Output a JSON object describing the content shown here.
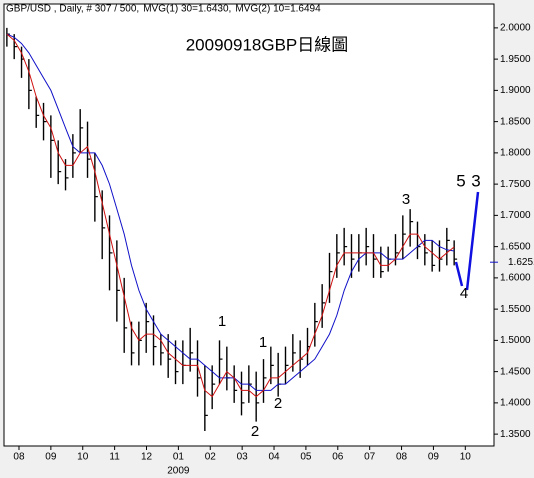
{
  "chart_data": {
    "type": "ohlc",
    "header": "GBP/USD , Daily, # 307 / 500,",
    "title": "20090918GBP日線圖",
    "x": [
      -0.38,
      -0.15,
      0.08,
      0.31,
      0.54,
      0.77,
      1.0,
      1.23,
      1.46,
      1.69,
      1.92,
      2.15,
      2.38,
      2.61,
      2.84,
      3.07,
      3.3,
      3.53,
      3.76,
      3.99,
      4.22,
      4.45,
      4.68,
      4.91,
      5.14,
      5.37,
      5.6,
      5.83,
      6.06,
      6.29,
      6.52,
      6.75,
      6.98,
      7.21,
      7.44,
      7.67,
      7.9,
      8.13,
      8.36,
      8.59,
      8.82,
      9.05,
      9.28,
      9.51,
      9.74,
      9.97,
      10.2,
      10.43,
      10.66,
      10.89,
      11.12,
      11.35,
      11.58,
      11.81,
      12.04,
      12.27,
      12.5,
      12.73,
      12.96,
      13.19,
      13.42,
      13.65
    ],
    "high": [
      2.0,
      1.99,
      1.97,
      1.95,
      1.89,
      1.88,
      1.86,
      1.82,
      1.79,
      1.83,
      1.87,
      1.85,
      1.8,
      1.74,
      1.7,
      1.66,
      1.6,
      1.53,
      1.53,
      1.56,
      1.54,
      1.51,
      1.51,
      1.5,
      1.5,
      1.52,
      1.5,
      1.46,
      1.46,
      1.5,
      1.49,
      1.46,
      1.45,
      1.46,
      1.45,
      1.47,
      1.49,
      1.48,
      1.49,
      1.51,
      1.5,
      1.52,
      1.56,
      1.59,
      1.64,
      1.67,
      1.68,
      1.67,
      1.67,
      1.68,
      1.67,
      1.65,
      1.65,
      1.67,
      1.7,
      1.71,
      1.69,
      1.67,
      1.66,
      1.66,
      1.68,
      1.66
    ],
    "low": [
      1.97,
      1.95,
      1.92,
      1.87,
      1.84,
      1.82,
      1.76,
      1.75,
      1.74,
      1.76,
      1.8,
      1.76,
      1.69,
      1.63,
      1.58,
      1.53,
      1.48,
      1.46,
      1.46,
      1.48,
      1.46,
      1.46,
      1.44,
      1.43,
      1.43,
      1.45,
      1.41,
      1.355,
      1.39,
      1.43,
      1.42,
      1.4,
      1.38,
      1.4,
      1.37,
      1.4,
      1.43,
      1.41,
      1.43,
      1.45,
      1.44,
      1.46,
      1.49,
      1.52,
      1.56,
      1.6,
      1.62,
      1.6,
      1.61,
      1.62,
      1.6,
      1.6,
      1.61,
      1.62,
      1.63,
      1.65,
      1.63,
      1.62,
      1.61,
      1.61,
      1.62,
      1.62
    ],
    "close": [
      1.99,
      1.97,
      1.95,
      1.9,
      1.86,
      1.85,
      1.82,
      1.77,
      1.76,
      1.8,
      1.84,
      1.79,
      1.73,
      1.68,
      1.64,
      1.58,
      1.52,
      1.48,
      1.5,
      1.53,
      1.49,
      1.48,
      1.47,
      1.45,
      1.46,
      1.48,
      1.44,
      1.38,
      1.43,
      1.47,
      1.44,
      1.42,
      1.4,
      1.43,
      1.4,
      1.44,
      1.46,
      1.43,
      1.46,
      1.48,
      1.47,
      1.49,
      1.53,
      1.56,
      1.61,
      1.64,
      1.65,
      1.63,
      1.64,
      1.65,
      1.63,
      1.61,
      1.63,
      1.64,
      1.67,
      1.69,
      1.65,
      1.64,
      1.62,
      1.63,
      1.66,
      1.63
    ],
    "bar_color": "#000000",
    "series": [
      {
        "name": "MVG(1) 30=1.6430,",
        "color": "#1010c8",
        "values": [
          1.99,
          1.985,
          1.975,
          1.96,
          1.94,
          1.92,
          1.9,
          1.87,
          1.84,
          1.81,
          1.8,
          1.8,
          1.8,
          1.78,
          1.75,
          1.71,
          1.67,
          1.62,
          1.58,
          1.55,
          1.53,
          1.51,
          1.5,
          1.49,
          1.48,
          1.47,
          1.47,
          1.46,
          1.45,
          1.44,
          1.44,
          1.44,
          1.43,
          1.43,
          1.42,
          1.42,
          1.42,
          1.43,
          1.43,
          1.44,
          1.45,
          1.46,
          1.47,
          1.49,
          1.51,
          1.54,
          1.58,
          1.61,
          1.63,
          1.64,
          1.64,
          1.64,
          1.63,
          1.63,
          1.63,
          1.64,
          1.65,
          1.66,
          1.66,
          1.65,
          1.645,
          1.643
        ]
      },
      {
        "name": "MVG(2) 10=1.6494",
        "color": "#d01010",
        "values": [
          1.99,
          1.98,
          1.96,
          1.93,
          1.89,
          1.86,
          1.84,
          1.8,
          1.78,
          1.78,
          1.8,
          1.81,
          1.77,
          1.72,
          1.67,
          1.62,
          1.57,
          1.52,
          1.5,
          1.51,
          1.51,
          1.5,
          1.48,
          1.47,
          1.46,
          1.46,
          1.46,
          1.42,
          1.41,
          1.43,
          1.45,
          1.44,
          1.42,
          1.42,
          1.41,
          1.42,
          1.44,
          1.44,
          1.45,
          1.46,
          1.47,
          1.48,
          1.51,
          1.54,
          1.58,
          1.62,
          1.64,
          1.64,
          1.64,
          1.64,
          1.64,
          1.62,
          1.62,
          1.63,
          1.65,
          1.67,
          1.67,
          1.65,
          1.64,
          1.63,
          1.64,
          1.6494
        ]
      }
    ],
    "xlim": [
      -0.47,
      14.9
    ],
    "xticks": [
      {
        "value": 0,
        "label": "08"
      },
      {
        "value": 1,
        "label": "09"
      },
      {
        "value": 2,
        "label": "10"
      },
      {
        "value": 3,
        "label": "11"
      },
      {
        "value": 4,
        "label": "12"
      },
      {
        "value": 5,
        "label": "01"
      },
      {
        "value": 6,
        "label": "02"
      },
      {
        "value": 7,
        "label": "03"
      },
      {
        "value": 8,
        "label": "04"
      },
      {
        "value": 9,
        "label": "05"
      },
      {
        "value": 10,
        "label": "06"
      },
      {
        "value": 11,
        "label": "07"
      },
      {
        "value": 12,
        "label": "08"
      },
      {
        "value": 13,
        "label": "09"
      },
      {
        "value": 14,
        "label": "10"
      }
    ],
    "year_label": "2009",
    "ylim": [
      1.331,
      2.035
    ],
    "yticks": [
      {
        "value": 2,
        "label": "2.0000"
      },
      {
        "value": 1.95,
        "label": "1.9500"
      },
      {
        "value": 1.9,
        "label": "1.9000"
      },
      {
        "value": 1.85,
        "label": "1.8500"
      },
      {
        "value": 1.8,
        "label": "1.8000"
      },
      {
        "value": 1.75,
        "label": "1.7500"
      },
      {
        "value": 1.7,
        "label": "1.7000"
      },
      {
        "value": 1.65,
        "label": "1.6500"
      },
      {
        "value": 1.6,
        "label": "1.6000"
      },
      {
        "value": 1.55,
        "label": "1.5500"
      },
      {
        "value": 1.5,
        "label": "1.5000"
      },
      {
        "value": 1.45,
        "label": "1.4500"
      },
      {
        "value": 1.4,
        "label": "1.4000"
      },
      {
        "value": 1.35,
        "label": "1.3500"
      }
    ],
    "last_price": 1.6251,
    "last_price_color": "#1010c8",
    "annotations": [
      {
        "text": "1",
        "color": "#2020e0"
      },
      {
        "text": "2",
        "color": "#2020e0"
      },
      {
        "text": "1",
        "color": "#e02020"
      },
      {
        "text": "2",
        "color": "#e02020"
      },
      {
        "text": "3",
        "color": "#e02020"
      },
      {
        "text": "4",
        "color": "#e02020"
      },
      {
        "text": "5",
        "color": "#e02020"
      },
      {
        "text": "3",
        "color": "#2020e0"
      }
    ]
  }
}
